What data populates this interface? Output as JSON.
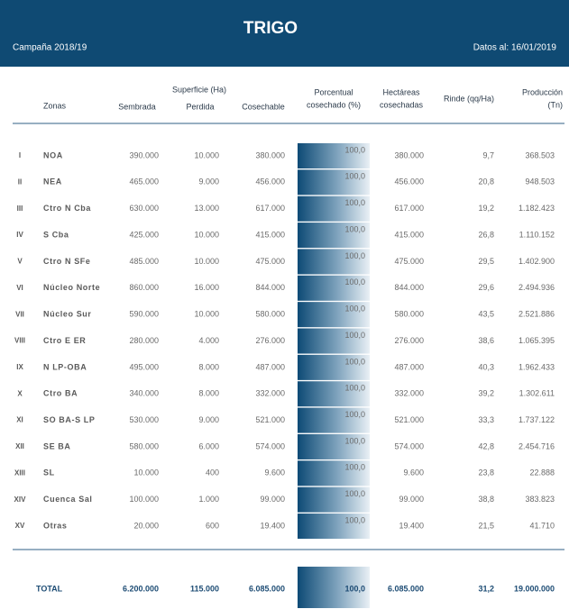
{
  "header": {
    "title": "TRIGO",
    "campaign": "Campaña 2018/19",
    "date": "Datos al: 16/01/2019"
  },
  "table": {
    "group_header": "Superficie (Ha)",
    "columns": [
      [
        "Zonas"
      ],
      [
        "Sembrada"
      ],
      [
        "Perdida"
      ],
      [
        "Cosechable"
      ],
      [
        "Porcentual",
        "cosechado (%)"
      ],
      [
        "Hectáreas",
        "cosechadas"
      ],
      [
        "Rinde (qq/Ha)"
      ],
      [
        "Producción",
        "(Tn)"
      ]
    ],
    "rows": [
      [
        "I",
        "NOA",
        "390.000",
        "10.000",
        "380.000",
        "100,0",
        "380.000",
        "9,7",
        "368.503"
      ],
      [
        "II",
        "NEA",
        "465.000",
        "9.000",
        "456.000",
        "100,0",
        "456.000",
        "20,8",
        "948.503"
      ],
      [
        "III",
        "Ctro N Cba",
        "630.000",
        "13.000",
        "617.000",
        "100,0",
        "617.000",
        "19,2",
        "1.182.423"
      ],
      [
        "IV",
        "S Cba",
        "425.000",
        "10.000",
        "415.000",
        "100,0",
        "415.000",
        "26,8",
        "1.110.152"
      ],
      [
        "V",
        "Ctro N SFe",
        "485.000",
        "10.000",
        "475.000",
        "100,0",
        "475.000",
        "29,5",
        "1.402.900"
      ],
      [
        "VI",
        "Núcleo Norte",
        "860.000",
        "16.000",
        "844.000",
        "100,0",
        "844.000",
        "29,6",
        "2.494.936"
      ],
      [
        "VII",
        "Núcleo Sur",
        "590.000",
        "10.000",
        "580.000",
        "100,0",
        "580.000",
        "43,5",
        "2.521.886"
      ],
      [
        "VIII",
        "Ctro E ER",
        "280.000",
        "4.000",
        "276.000",
        "100,0",
        "276.000",
        "38,6",
        "1.065.395"
      ],
      [
        "IX",
        "N LP-OBA",
        "495.000",
        "8.000",
        "487.000",
        "100,0",
        "487.000",
        "40,3",
        "1.962.433"
      ],
      [
        "X",
        "Ctro BA",
        "340.000",
        "8.000",
        "332.000",
        "100,0",
        "332.000",
        "39,2",
        "1.302.611"
      ],
      [
        "XI",
        "SO BA-S LP",
        "530.000",
        "9.000",
        "521.000",
        "100,0",
        "521.000",
        "33,3",
        "1.737.122"
      ],
      [
        "XII",
        "SE BA",
        "580.000",
        "6.000",
        "574.000",
        "100,0",
        "574.000",
        "42,8",
        "2.454.716"
      ],
      [
        "XIII",
        "SL",
        "10.000",
        "400",
        "9.600",
        "100,0",
        "9.600",
        "23,8",
        "22.888"
      ],
      [
        "XIV",
        "Cuenca Sal",
        "100.000",
        "1.000",
        "99.000",
        "100,0",
        "99.000",
        "38,8",
        "383.823"
      ],
      [
        "XV",
        "Otras",
        "20.000",
        "600",
        "19.400",
        "100,0",
        "19.400",
        "21,5",
        "41.710"
      ]
    ],
    "total": [
      "TOTAL",
      "6.200.000",
      "115.000",
      "6.085.000",
      "100,0",
      "6.085.000",
      "31,2",
      "19.000.000"
    ]
  }
}
